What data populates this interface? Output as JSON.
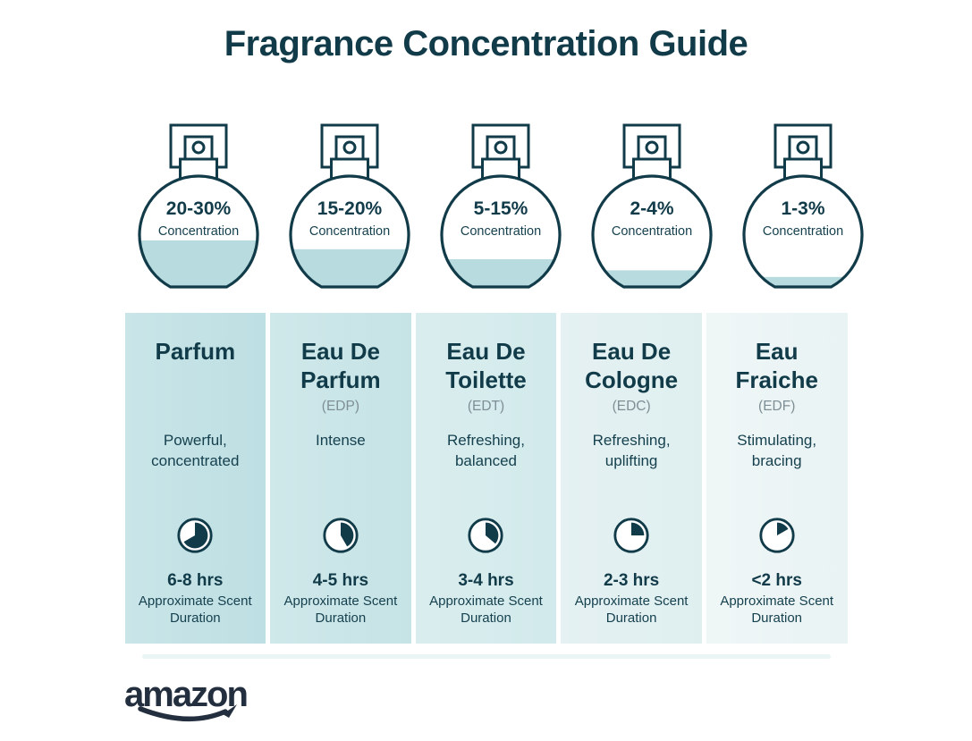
{
  "title": "Fragrance Concentration Guide",
  "brand": {
    "logo": "amazon"
  },
  "colors": {
    "heading_ink": "#113b49",
    "body_ink": "#16414f",
    "muted_gray": "#7e8e95",
    "bottle_liquid": "#b7dbdf",
    "outline_ink": "#113b49",
    "logo_navy": "#232f3e"
  },
  "bottles": [
    {
      "concentration": "20-30%",
      "caption": "Concentration",
      "fill_level_pct": 42
    },
    {
      "concentration": "15-20%",
      "caption": "Concentration",
      "fill_level_pct": 34
    },
    {
      "concentration": "5-15%",
      "caption": "Concentration",
      "fill_level_pct": 25
    },
    {
      "concentration": "2-4%",
      "caption": "Concentration",
      "fill_level_pct": 15
    },
    {
      "concentration": "1-3%",
      "caption": "Concentration",
      "fill_level_pct": 9
    }
  ],
  "columns": [
    {
      "name": "Parfum",
      "abbr": "",
      "description": "Powerful, concentrated",
      "duration": "6-8 hrs",
      "duration_note": "Approximate Scent Duration",
      "clock_fill_degrees": 240,
      "bg_from": "#c9e5e8",
      "bg_to": "#bedfe3"
    },
    {
      "name": "Eau De Parfum",
      "abbr": "(EDP)",
      "description": "Intense",
      "duration": "4-5 hrs",
      "duration_note": "Approximate Scent Duration",
      "clock_fill_degrees": 150,
      "bg_from": "#cfe8ea",
      "bg_to": "#c6e3e6"
    },
    {
      "name": "Eau De Toilette",
      "abbr": "(EDT)",
      "description": "Refreshing, balanced",
      "duration": "3-4 hrs",
      "duration_note": "Approximate Scent Duration",
      "clock_fill_degrees": 130,
      "bg_from": "#daedee",
      "bg_to": "#d2eaec"
    },
    {
      "name": "Eau De Cologne",
      "abbr": "(EDC)",
      "description": "Refreshing, uplifting",
      "duration": "2-3 hrs",
      "duration_note": "Approximate Scent Duration",
      "clock_fill_degrees": 90,
      "bg_from": "#e5f1f2",
      "bg_to": "#dfeff0"
    },
    {
      "name": "Eau Fraiche",
      "abbr": "(EDF)",
      "description": "Stimulating, bracing",
      "duration": "<2 hrs",
      "duration_note": "Approximate Scent Duration",
      "clock_fill_degrees": 60,
      "bg_from": "#eff6f6",
      "bg_to": "#e9f3f4"
    }
  ]
}
